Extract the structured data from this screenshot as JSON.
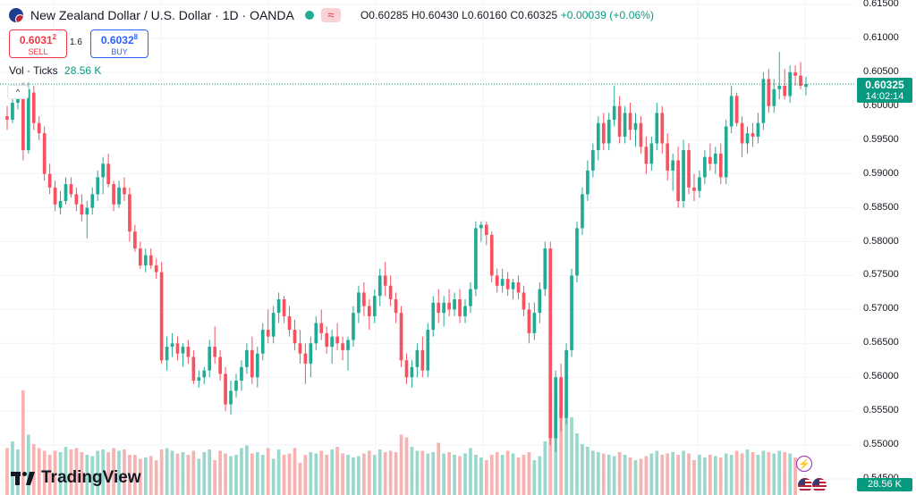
{
  "header": {
    "title": "New Zealand Dollar / U.S. Dollar · 1D · OANDA",
    "open": "O0.60285",
    "high": "H0.60430",
    "low": "L0.60160",
    "close": "C0.60325",
    "change": "+0.00039 (+0.06%)",
    "wave_icon": "≈"
  },
  "trade": {
    "sell_price_main": "0.6031",
    "sell_price_sup": "2",
    "sell_label": "SELL",
    "spread": "1.6",
    "buy_price_main": "0.6032",
    "buy_price_sup": "8",
    "buy_label": "BUY"
  },
  "volume_legend": {
    "label": "Vol · Ticks",
    "value": "28.56 K"
  },
  "last_price": {
    "price": "0.60325",
    "countdown": "14:02:14"
  },
  "volume_tag": "28.56 K",
  "brand": "TradingView",
  "colors": {
    "up": "#22ab94",
    "down": "#f7525f",
    "vol_up": "#9ad8cc",
    "vol_down": "#f7b2b2"
  },
  "chart_data": {
    "type": "candlestick",
    "symbol": "NZDUSD",
    "interval": "1D",
    "ylim": [
      0.545,
      0.615
    ],
    "y_ticks": [
      "0.61500",
      "0.61000",
      "0.60500",
      "0.60000",
      "0.59500",
      "0.59000",
      "0.58500",
      "0.58000",
      "0.57500",
      "0.57000",
      "0.56500",
      "0.56000",
      "0.55500",
      "0.55000",
      "0.54500"
    ],
    "candles": [
      {
        "o": 0.5985,
        "h": 0.6,
        "l": 0.5965,
        "c": 0.598
      },
      {
        "o": 0.598,
        "h": 0.6015,
        "l": 0.5975,
        "c": 0.6005
      },
      {
        "o": 0.6005,
        "h": 0.603,
        "l": 0.5995,
        "c": 0.6015
      },
      {
        "o": 0.6015,
        "h": 0.6035,
        "l": 0.592,
        "c": 0.5935
      },
      {
        "o": 0.5935,
        "h": 0.6035,
        "l": 0.593,
        "c": 0.6025
      },
      {
        "o": 0.602,
        "h": 0.603,
        "l": 0.5965,
        "c": 0.5975
      },
      {
        "o": 0.5975,
        "h": 0.5985,
        "l": 0.595,
        "c": 0.596
      },
      {
        "o": 0.596,
        "h": 0.597,
        "l": 0.589,
        "c": 0.59
      },
      {
        "o": 0.59,
        "h": 0.5915,
        "l": 0.587,
        "c": 0.588
      },
      {
        "o": 0.588,
        "h": 0.589,
        "l": 0.5845,
        "c": 0.5855
      },
      {
        "o": 0.585,
        "h": 0.5875,
        "l": 0.584,
        "c": 0.586
      },
      {
        "o": 0.586,
        "h": 0.5895,
        "l": 0.5855,
        "c": 0.5885
      },
      {
        "o": 0.5885,
        "h": 0.5895,
        "l": 0.5865,
        "c": 0.587
      },
      {
        "o": 0.587,
        "h": 0.588,
        "l": 0.5845,
        "c": 0.5855
      },
      {
        "o": 0.5855,
        "h": 0.587,
        "l": 0.583,
        "c": 0.584
      },
      {
        "o": 0.584,
        "h": 0.586,
        "l": 0.5805,
        "c": 0.585
      },
      {
        "o": 0.585,
        "h": 0.588,
        "l": 0.584,
        "c": 0.587
      },
      {
        "o": 0.587,
        "h": 0.5905,
        "l": 0.586,
        "c": 0.5895
      },
      {
        "o": 0.5895,
        "h": 0.5925,
        "l": 0.587,
        "c": 0.5915
      },
      {
        "o": 0.5915,
        "h": 0.593,
        "l": 0.588,
        "c": 0.5885
      },
      {
        "o": 0.5885,
        "h": 0.589,
        "l": 0.5845,
        "c": 0.5855
      },
      {
        "o": 0.5855,
        "h": 0.589,
        "l": 0.585,
        "c": 0.588
      },
      {
        "o": 0.588,
        "h": 0.5895,
        "l": 0.586,
        "c": 0.587
      },
      {
        "o": 0.587,
        "h": 0.588,
        "l": 0.58,
        "c": 0.5815
      },
      {
        "o": 0.5815,
        "h": 0.5825,
        "l": 0.5785,
        "c": 0.579
      },
      {
        "o": 0.579,
        "h": 0.58,
        "l": 0.576,
        "c": 0.5765
      },
      {
        "o": 0.5765,
        "h": 0.579,
        "l": 0.5755,
        "c": 0.578
      },
      {
        "o": 0.578,
        "h": 0.579,
        "l": 0.576,
        "c": 0.5765
      },
      {
        "o": 0.5765,
        "h": 0.5775,
        "l": 0.5745,
        "c": 0.5755
      },
      {
        "o": 0.5755,
        "h": 0.577,
        "l": 0.562,
        "c": 0.5625
      },
      {
        "o": 0.5625,
        "h": 0.566,
        "l": 0.561,
        "c": 0.5645
      },
      {
        "o": 0.5645,
        "h": 0.5665,
        "l": 0.563,
        "c": 0.565
      },
      {
        "o": 0.565,
        "h": 0.566,
        "l": 0.5625,
        "c": 0.5635
      },
      {
        "o": 0.5635,
        "h": 0.565,
        "l": 0.5615,
        "c": 0.5645
      },
      {
        "o": 0.5645,
        "h": 0.5655,
        "l": 0.562,
        "c": 0.563
      },
      {
        "o": 0.563,
        "h": 0.564,
        "l": 0.559,
        "c": 0.5595
      },
      {
        "o": 0.5595,
        "h": 0.561,
        "l": 0.5585,
        "c": 0.56
      },
      {
        "o": 0.56,
        "h": 0.5615,
        "l": 0.559,
        "c": 0.561
      },
      {
        "o": 0.561,
        "h": 0.5655,
        "l": 0.56,
        "c": 0.5645
      },
      {
        "o": 0.5645,
        "h": 0.5675,
        "l": 0.562,
        "c": 0.563
      },
      {
        "o": 0.563,
        "h": 0.564,
        "l": 0.5595,
        "c": 0.5605
      },
      {
        "o": 0.5605,
        "h": 0.5615,
        "l": 0.555,
        "c": 0.556
      },
      {
        "o": 0.556,
        "h": 0.5595,
        "l": 0.5545,
        "c": 0.558
      },
      {
        "o": 0.558,
        "h": 0.5605,
        "l": 0.557,
        "c": 0.5595
      },
      {
        "o": 0.5595,
        "h": 0.5625,
        "l": 0.558,
        "c": 0.5615
      },
      {
        "o": 0.5615,
        "h": 0.565,
        "l": 0.5605,
        "c": 0.564
      },
      {
        "o": 0.564,
        "h": 0.566,
        "l": 0.559,
        "c": 0.56
      },
      {
        "o": 0.56,
        "h": 0.5645,
        "l": 0.5585,
        "c": 0.5635
      },
      {
        "o": 0.5635,
        "h": 0.568,
        "l": 0.5625,
        "c": 0.567
      },
      {
        "o": 0.567,
        "h": 0.57,
        "l": 0.565,
        "c": 0.566
      },
      {
        "o": 0.566,
        "h": 0.5705,
        "l": 0.565,
        "c": 0.5695
      },
      {
        "o": 0.5695,
        "h": 0.5725,
        "l": 0.568,
        "c": 0.5715
      },
      {
        "o": 0.5715,
        "h": 0.572,
        "l": 0.568,
        "c": 0.569
      },
      {
        "o": 0.569,
        "h": 0.5705,
        "l": 0.566,
        "c": 0.567
      },
      {
        "o": 0.567,
        "h": 0.5685,
        "l": 0.564,
        "c": 0.565
      },
      {
        "o": 0.565,
        "h": 0.567,
        "l": 0.562,
        "c": 0.5635
      },
      {
        "o": 0.5635,
        "h": 0.565,
        "l": 0.559,
        "c": 0.562
      },
      {
        "o": 0.562,
        "h": 0.566,
        "l": 0.56,
        "c": 0.565
      },
      {
        "o": 0.565,
        "h": 0.569,
        "l": 0.564,
        "c": 0.568
      },
      {
        "o": 0.568,
        "h": 0.57,
        "l": 0.5655,
        "c": 0.5665
      },
      {
        "o": 0.5665,
        "h": 0.5675,
        "l": 0.5635,
        "c": 0.5645
      },
      {
        "o": 0.5645,
        "h": 0.567,
        "l": 0.562,
        "c": 0.566
      },
      {
        "o": 0.566,
        "h": 0.568,
        "l": 0.564,
        "c": 0.565
      },
      {
        "o": 0.565,
        "h": 0.566,
        "l": 0.5625,
        "c": 0.564
      },
      {
        "o": 0.564,
        "h": 0.566,
        "l": 0.561,
        "c": 0.5655
      },
      {
        "o": 0.5655,
        "h": 0.5705,
        "l": 0.5645,
        "c": 0.5695
      },
      {
        "o": 0.5695,
        "h": 0.5735,
        "l": 0.568,
        "c": 0.5725
      },
      {
        "o": 0.5725,
        "h": 0.574,
        "l": 0.569,
        "c": 0.5705
      },
      {
        "o": 0.5705,
        "h": 0.5715,
        "l": 0.567,
        "c": 0.569
      },
      {
        "o": 0.569,
        "h": 0.573,
        "l": 0.568,
        "c": 0.572
      },
      {
        "o": 0.572,
        "h": 0.576,
        "l": 0.5705,
        "c": 0.575
      },
      {
        "o": 0.575,
        "h": 0.577,
        "l": 0.572,
        "c": 0.5735
      },
      {
        "o": 0.5735,
        "h": 0.575,
        "l": 0.5705,
        "c": 0.5715
      },
      {
        "o": 0.5715,
        "h": 0.5725,
        "l": 0.568,
        "c": 0.5695
      },
      {
        "o": 0.5695,
        "h": 0.5705,
        "l": 0.5615,
        "c": 0.5625
      },
      {
        "o": 0.5625,
        "h": 0.5635,
        "l": 0.559,
        "c": 0.56
      },
      {
        "o": 0.56,
        "h": 0.5625,
        "l": 0.5585,
        "c": 0.5615
      },
      {
        "o": 0.5615,
        "h": 0.565,
        "l": 0.56,
        "c": 0.564
      },
      {
        "o": 0.564,
        "h": 0.566,
        "l": 0.56,
        "c": 0.561
      },
      {
        "o": 0.561,
        "h": 0.568,
        "l": 0.56,
        "c": 0.567
      },
      {
        "o": 0.567,
        "h": 0.572,
        "l": 0.566,
        "c": 0.571
      },
      {
        "o": 0.571,
        "h": 0.573,
        "l": 0.568,
        "c": 0.5695
      },
      {
        "o": 0.5695,
        "h": 0.572,
        "l": 0.5675,
        "c": 0.571
      },
      {
        "o": 0.571,
        "h": 0.573,
        "l": 0.569,
        "c": 0.57
      },
      {
        "o": 0.57,
        "h": 0.5725,
        "l": 0.569,
        "c": 0.5715
      },
      {
        "o": 0.5715,
        "h": 0.573,
        "l": 0.568,
        "c": 0.569
      },
      {
        "o": 0.569,
        "h": 0.5715,
        "l": 0.568,
        "c": 0.5705
      },
      {
        "o": 0.5705,
        "h": 0.574,
        "l": 0.5695,
        "c": 0.573
      },
      {
        "o": 0.573,
        "h": 0.583,
        "l": 0.572,
        "c": 0.582
      },
      {
        "o": 0.582,
        "h": 0.583,
        "l": 0.58,
        "c": 0.5825
      },
      {
        "o": 0.5825,
        "h": 0.583,
        "l": 0.5795,
        "c": 0.581
      },
      {
        "o": 0.581,
        "h": 0.5815,
        "l": 0.574,
        "c": 0.575
      },
      {
        "o": 0.575,
        "h": 0.576,
        "l": 0.5725,
        "c": 0.5735
      },
      {
        "o": 0.5735,
        "h": 0.576,
        "l": 0.5725,
        "c": 0.5745
      },
      {
        "o": 0.5745,
        "h": 0.5755,
        "l": 0.572,
        "c": 0.573
      },
      {
        "o": 0.573,
        "h": 0.5745,
        "l": 0.5715,
        "c": 0.574
      },
      {
        "o": 0.574,
        "h": 0.575,
        "l": 0.5715,
        "c": 0.5725
      },
      {
        "o": 0.5725,
        "h": 0.5735,
        "l": 0.569,
        "c": 0.57
      },
      {
        "o": 0.57,
        "h": 0.571,
        "l": 0.565,
        "c": 0.5665
      },
      {
        "o": 0.5665,
        "h": 0.571,
        "l": 0.5655,
        "c": 0.5695
      },
      {
        "o": 0.5695,
        "h": 0.574,
        "l": 0.568,
        "c": 0.573
      },
      {
        "o": 0.573,
        "h": 0.58,
        "l": 0.572,
        "c": 0.579
      },
      {
        "o": 0.579,
        "h": 0.58,
        "l": 0.55,
        "c": 0.551
      },
      {
        "o": 0.551,
        "h": 0.561,
        "l": 0.549,
        "c": 0.56
      },
      {
        "o": 0.56,
        "h": 0.562,
        "l": 0.552,
        "c": 0.554
      },
      {
        "o": 0.554,
        "h": 0.565,
        "l": 0.553,
        "c": 0.564
      },
      {
        "o": 0.564,
        "h": 0.576,
        "l": 0.563,
        "c": 0.575
      },
      {
        "o": 0.575,
        "h": 0.583,
        "l": 0.574,
        "c": 0.582
      },
      {
        "o": 0.582,
        "h": 0.588,
        "l": 0.581,
        "c": 0.587
      },
      {
        "o": 0.587,
        "h": 0.592,
        "l": 0.586,
        "c": 0.5905
      },
      {
        "o": 0.5905,
        "h": 0.5945,
        "l": 0.5895,
        "c": 0.5935
      },
      {
        "o": 0.5935,
        "h": 0.5985,
        "l": 0.592,
        "c": 0.5975
      },
      {
        "o": 0.5975,
        "h": 0.599,
        "l": 0.5935,
        "c": 0.5945
      },
      {
        "o": 0.5945,
        "h": 0.599,
        "l": 0.5935,
        "c": 0.598
      },
      {
        "o": 0.598,
        "h": 0.603,
        "l": 0.597,
        "c": 0.6
      },
      {
        "o": 0.6,
        "h": 0.6015,
        "l": 0.5945,
        "c": 0.5955
      },
      {
        "o": 0.5955,
        "h": 0.6,
        "l": 0.5945,
        "c": 0.599
      },
      {
        "o": 0.599,
        "h": 0.6005,
        "l": 0.595,
        "c": 0.5965
      },
      {
        "o": 0.5965,
        "h": 0.599,
        "l": 0.594,
        "c": 0.5975
      },
      {
        "o": 0.5975,
        "h": 0.5985,
        "l": 0.593,
        "c": 0.594
      },
      {
        "o": 0.594,
        "h": 0.5955,
        "l": 0.59,
        "c": 0.5915
      },
      {
        "o": 0.5915,
        "h": 0.5955,
        "l": 0.5905,
        "c": 0.5945
      },
      {
        "o": 0.5945,
        "h": 0.6005,
        "l": 0.5935,
        "c": 0.599
      },
      {
        "o": 0.599,
        "h": 0.6,
        "l": 0.593,
        "c": 0.5945
      },
      {
        "o": 0.5945,
        "h": 0.596,
        "l": 0.589,
        "c": 0.5905
      },
      {
        "o": 0.5905,
        "h": 0.593,
        "l": 0.5875,
        "c": 0.592
      },
      {
        "o": 0.592,
        "h": 0.594,
        "l": 0.585,
        "c": 0.586
      },
      {
        "o": 0.586,
        "h": 0.595,
        "l": 0.585,
        "c": 0.5935
      },
      {
        "o": 0.5935,
        "h": 0.5945,
        "l": 0.587,
        "c": 0.588
      },
      {
        "o": 0.588,
        "h": 0.59,
        "l": 0.586,
        "c": 0.5875
      },
      {
        "o": 0.5875,
        "h": 0.5905,
        "l": 0.5865,
        "c": 0.5895
      },
      {
        "o": 0.5895,
        "h": 0.5935,
        "l": 0.5885,
        "c": 0.5925
      },
      {
        "o": 0.5925,
        "h": 0.5945,
        "l": 0.5905,
        "c": 0.5915
      },
      {
        "o": 0.5915,
        "h": 0.594,
        "l": 0.59,
        "c": 0.593
      },
      {
        "o": 0.593,
        "h": 0.5945,
        "l": 0.5885,
        "c": 0.5895
      },
      {
        "o": 0.5895,
        "h": 0.598,
        "l": 0.5885,
        "c": 0.597
      },
      {
        "o": 0.597,
        "h": 0.603,
        "l": 0.596,
        "c": 0.6015
      },
      {
        "o": 0.6015,
        "h": 0.602,
        "l": 0.597,
        "c": 0.5975
      },
      {
        "o": 0.5975,
        "h": 0.5985,
        "l": 0.5925,
        "c": 0.5945
      },
      {
        "o": 0.5945,
        "h": 0.597,
        "l": 0.593,
        "c": 0.596
      },
      {
        "o": 0.596,
        "h": 0.5975,
        "l": 0.594,
        "c": 0.5955
      },
      {
        "o": 0.5955,
        "h": 0.599,
        "l": 0.5945,
        "c": 0.5975
      },
      {
        "o": 0.5975,
        "h": 0.605,
        "l": 0.5965,
        "c": 0.604
      },
      {
        "o": 0.604,
        "h": 0.6055,
        "l": 0.599,
        "c": 0.6
      },
      {
        "o": 0.6,
        "h": 0.604,
        "l": 0.599,
        "c": 0.6025
      },
      {
        "o": 0.6025,
        "h": 0.608,
        "l": 0.601,
        "c": 0.603
      },
      {
        "o": 0.603,
        "h": 0.6055,
        "l": 0.601,
        "c": 0.6015
      },
      {
        "o": 0.6015,
        "h": 0.606,
        "l": 0.6005,
        "c": 0.605
      },
      {
        "o": 0.605,
        "h": 0.606,
        "l": 0.603,
        "c": 0.6045
      },
      {
        "o": 0.6045,
        "h": 0.6065,
        "l": 0.6025,
        "c": 0.603
      },
      {
        "o": 0.60285,
        "h": 0.6043,
        "l": 0.6016,
        "c": 0.60325
      }
    ],
    "volumes": [
      35,
      40,
      34,
      78,
      45,
      38,
      35,
      33,
      30,
      33,
      32,
      36,
      34,
      35,
      32,
      30,
      29,
      33,
      34,
      32,
      35,
      33,
      34,
      30,
      30,
      27,
      28,
      29,
      26,
      34,
      35,
      33,
      31,
      32,
      30,
      33,
      27,
      32,
      34,
      26,
      33,
      31,
      29,
      30,
      35,
      37,
      31,
      32,
      30,
      35,
      27,
      34,
      30,
      31,
      35,
      24,
      30,
      32,
      31,
      33,
      30,
      34,
      36,
      31,
      30,
      28,
      29,
      31,
      33,
      30,
      34,
      32,
      33,
      32,
      45,
      43,
      36,
      33,
      33,
      31,
      32,
      39,
      31,
      32,
      30,
      29,
      31,
      35,
      30,
      28,
      26,
      30,
      32,
      30,
      33,
      31,
      28,
      30,
      32,
      26,
      29,
      40,
      75,
      62,
      66,
      72,
      58,
      46,
      38,
      36,
      33,
      32,
      31,
      30,
      29,
      32,
      30,
      28,
      26,
      27,
      29,
      31,
      33,
      30,
      31,
      32,
      30,
      33,
      31,
      26,
      30,
      28,
      30,
      29,
      28,
      31,
      30,
      33,
      31,
      34,
      32,
      30,
      33,
      32,
      31,
      33,
      32,
      31,
      28
    ]
  }
}
